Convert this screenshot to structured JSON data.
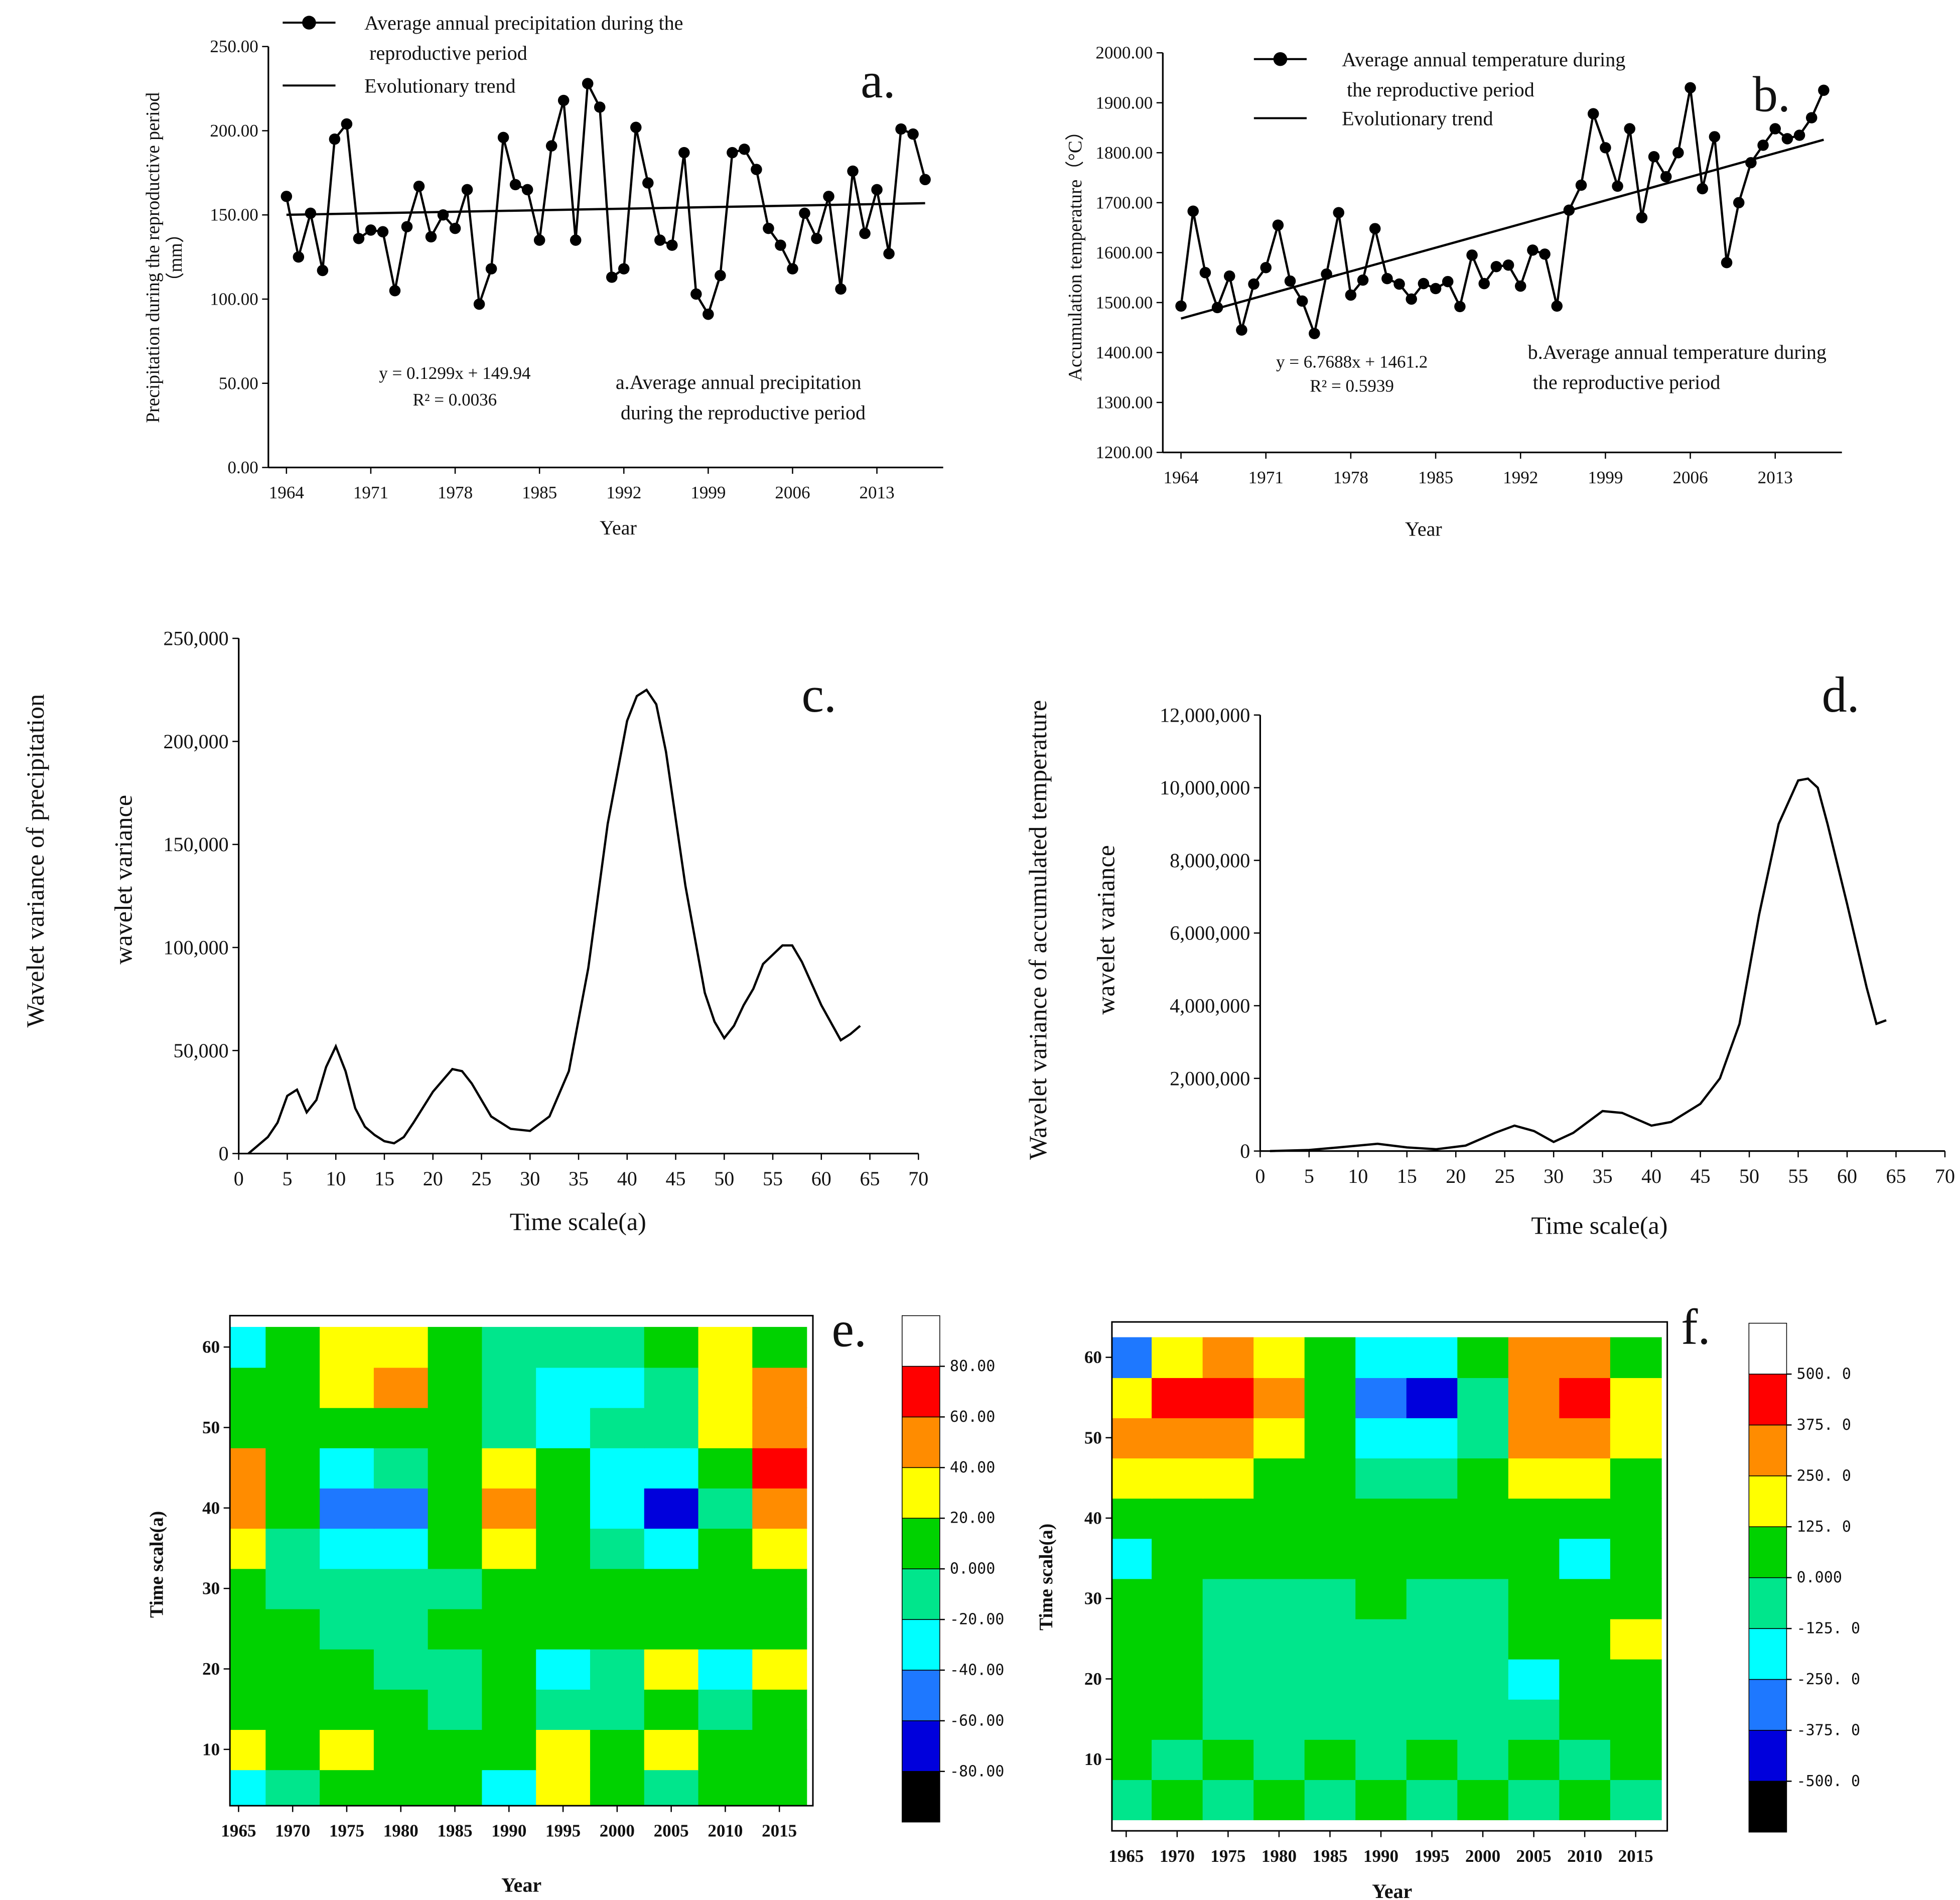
{
  "chart_data": [
    {
      "type": "line",
      "panel_label": "a.",
      "xlabel": "Year",
      "ylabel": [
        "Precipitation during the reproductive period",
        "（mm）"
      ],
      "annotations": [
        "y = 0.1299x + 149.94",
        "R² = 0.0036",
        "a.Average annual precipitation during the reproductive period"
      ],
      "x": [
        1964,
        1965,
        1966,
        1967,
        1968,
        1969,
        1970,
        1971,
        1972,
        1973,
        1974,
        1975,
        1976,
        1977,
        1978,
        1979,
        1980,
        1981,
        1982,
        1983,
        1984,
        1985,
        1986,
        1987,
        1988,
        1989,
        1990,
        1991,
        1992,
        1993,
        1994,
        1995,
        1996,
        1997,
        1998,
        1999,
        2000,
        2001,
        2002,
        2003,
        2004,
        2005,
        2006,
        2007,
        2008,
        2009,
        2010,
        2011,
        2012,
        2013,
        2014,
        2015,
        2016,
        2017
      ],
      "series": [
        {
          "name": "Average annual precipitation during the reproductive period",
          "color": "#000000",
          "marker": true,
          "values": [
            161,
            125,
            151,
            117,
            195,
            204,
            136,
            141,
            140,
            105,
            143,
            167,
            137,
            150,
            142,
            165,
            97,
            118,
            196,
            168,
            165,
            135,
            191,
            218,
            135,
            228,
            214,
            113,
            118,
            202,
            169,
            135,
            132,
            187,
            103,
            91,
            114,
            187,
            189,
            177,
            142,
            132,
            118,
            151,
            136,
            161,
            106,
            176,
            139,
            165,
            127,
            201,
            198,
            171
          ]
        },
        {
          "name": "Evolutionary trend",
          "color": "#000000",
          "marker": false,
          "x": [
            1964,
            2017
          ],
          "values": [
            150.07,
            156.95
          ]
        }
      ],
      "xlim": [
        1962.5,
        2018.5
      ],
      "xticks": [
        1964,
        1971,
        1978,
        1985,
        1992,
        1999,
        2006,
        2013
      ],
      "ylim": [
        0,
        250
      ],
      "yticks": [
        {
          "value": 0,
          "label": "0.00"
        },
        {
          "value": 50,
          "label": "50.00"
        },
        {
          "value": 100,
          "label": "100.00"
        },
        {
          "value": 150,
          "label": "150.00"
        },
        {
          "value": 200,
          "label": "200.00"
        },
        {
          "value": 250,
          "label": "250.00"
        }
      ]
    },
    {
      "type": "line",
      "panel_label": "b.",
      "xlabel": "Year",
      "ylabel": [
        "Accumulation temperature（°C）"
      ],
      "annotations": [
        "y = 6.7688x + 1461.2",
        "R² = 0.5939",
        "b.Average annual temperature during the reproductive period"
      ],
      "x": [
        1964,
        1965,
        1966,
        1967,
        1968,
        1969,
        1970,
        1971,
        1972,
        1973,
        1974,
        1975,
        1976,
        1977,
        1978,
        1979,
        1980,
        1981,
        1982,
        1983,
        1984,
        1985,
        1986,
        1987,
        1988,
        1989,
        1990,
        1991,
        1992,
        1993,
        1994,
        1995,
        1996,
        1997,
        1998,
        1999,
        2000,
        2001,
        2002,
        2003,
        2004,
        2005,
        2006,
        2007,
        2008,
        2009,
        2010,
        2011,
        2012,
        2013,
        2014,
        2015,
        2016,
        2017
      ],
      "series": [
        {
          "name": "Average annual temperature during the reproductive period",
          "color": "#000000",
          "marker": true,
          "values": [
            1493,
            1683,
            1560,
            1490,
            1553,
            1445,
            1537,
            1570,
            1655,
            1543,
            1503,
            1438,
            1557,
            1680,
            1515,
            1545,
            1648,
            1548,
            1537,
            1507,
            1538,
            1528,
            1542,
            1492,
            1595,
            1538,
            1572,
            1575,
            1533,
            1605,
            1597,
            1493,
            1685,
            1735,
            1878,
            1810,
            1733,
            1848,
            1670,
            1792,
            1752,
            1800,
            1930,
            1728,
            1832,
            1580,
            1700,
            1780,
            1815,
            1848,
            1828,
            1835,
            1870,
            1925
          ]
        },
        {
          "name": "Evolutionary trend",
          "color": "#000000",
          "marker": false,
          "x": [
            1964,
            2017
          ],
          "values": [
            1468,
            1826
          ]
        }
      ],
      "xlim": [
        1962.5,
        2018.5
      ],
      "xticks": [
        1964,
        1971,
        1978,
        1985,
        1992,
        1999,
        2006,
        2013
      ],
      "ylim": [
        1200,
        2000
      ],
      "yticks": [
        {
          "value": 1200,
          "label": "1200.00"
        },
        {
          "value": 1300,
          "label": "1300.00"
        },
        {
          "value": 1400,
          "label": "1400.00"
        },
        {
          "value": 1500,
          "label": "1500.00"
        },
        {
          "value": 1600,
          "label": "1600.00"
        },
        {
          "value": 1700,
          "label": "1700.00"
        },
        {
          "value": 1800,
          "label": "1800.00"
        },
        {
          "value": 1900,
          "label": "1900.00"
        },
        {
          "value": 2000,
          "label": "2000.00"
        }
      ]
    },
    {
      "type": "line",
      "panel_label": "c.",
      "xlabel": "Time scale(a)",
      "ylabel": [
        "Wavelet variance of precipitation",
        "wavelet variance"
      ],
      "x": [
        1,
        3,
        4,
        5,
        6,
        7,
        8,
        9,
        10,
        11,
        12,
        13,
        14,
        15,
        16,
        17,
        18,
        20,
        22,
        23,
        24,
        26,
        28,
        30,
        32,
        34,
        36,
        38,
        40,
        41,
        42,
        43,
        44,
        46,
        48,
        49,
        50,
        51,
        52,
        53,
        54,
        56,
        57,
        58,
        60,
        62,
        63,
        64
      ],
      "series": [
        {
          "color": "#000000",
          "marker": false,
          "values": [
            0,
            8000,
            15000,
            28000,
            31000,
            20000,
            26000,
            42000,
            52000,
            40000,
            22000,
            13000,
            9000,
            6000,
            5000,
            8000,
            15000,
            30000,
            41000,
            40000,
            34000,
            18000,
            12000,
            11000,
            18000,
            40000,
            90000,
            160000,
            210000,
            222000,
            225000,
            218000,
            195000,
            130000,
            78000,
            64000,
            56000,
            62000,
            72000,
            80000,
            92000,
            101000,
            101000,
            93000,
            72000,
            55000,
            58000,
            62000
          ]
        }
      ],
      "xlim": [
        0,
        70
      ],
      "xticks": [
        0,
        5,
        10,
        15,
        20,
        25,
        30,
        35,
        40,
        45,
        50,
        55,
        60,
        65,
        70
      ],
      "ylim": [
        0,
        250000
      ],
      "yticks": [
        0,
        {
          "value": 50000,
          "label": "50,000"
        },
        {
          "value": 100000,
          "label": "100,000"
        },
        {
          "value": 150000,
          "label": "150,000"
        },
        {
          "value": 200000,
          "label": "200,000"
        },
        {
          "value": 250000,
          "label": "250,000"
        }
      ]
    },
    {
      "type": "line",
      "panel_label": "d.",
      "xlabel": "Time scale(a)",
      "ylabel": [
        "Wavelet variance of accumulated temperature",
        "wavelet variance"
      ],
      "x": [
        1,
        5,
        8,
        12,
        15,
        18,
        21,
        24,
        26,
        28,
        30,
        32,
        35,
        37,
        40,
        42,
        45,
        47,
        49,
        51,
        53,
        55,
        56,
        57,
        58,
        60,
        62,
        63,
        64
      ],
      "series": [
        {
          "color": "#000000",
          "marker": false,
          "values": [
            0,
            30000,
            100000,
            200000,
            100000,
            50000,
            150000,
            500000,
            700000,
            550000,
            250000,
            500000,
            1100000,
            1050000,
            700000,
            800000,
            1300000,
            2000000,
            3500000,
            6500000,
            9000000,
            10200000,
            10250000,
            10000000,
            9000000,
            6800000,
            4500000,
            3500000,
            3600000
          ]
        }
      ],
      "xlim": [
        0,
        70
      ],
      "xticks": [
        0,
        5,
        10,
        15,
        20,
        25,
        30,
        35,
        40,
        45,
        50,
        55,
        60,
        65,
        70
      ],
      "ylim": [
        0,
        12000000
      ],
      "yticks": [
        0,
        {
          "value": 2000000,
          "label": "2,000,000"
        },
        {
          "value": 4000000,
          "label": "4,000,000"
        },
        {
          "value": 6000000,
          "label": "6,000,000"
        },
        {
          "value": 8000000,
          "label": "8,000,000"
        },
        {
          "value": 10000000,
          "label": "10,000,000"
        },
        {
          "value": 12000000,
          "label": "12,000,000"
        }
      ]
    },
    {
      "type": "contour",
      "panel_label": "e.",
      "xlabel": "Year",
      "ylabel": [
        "Time scale(a)"
      ],
      "x": [
        1965,
        1970,
        1975,
        1980,
        1985,
        1990,
        1995,
        2000,
        2005,
        2010,
        2015
      ],
      "y": [
        5,
        10,
        15,
        20,
        25,
        30,
        35,
        40,
        45,
        50,
        55,
        60
      ],
      "z": [
        [
          -25,
          -10,
          10,
          5,
          5,
          -25,
          25,
          5,
          -5,
          5,
          0
        ],
        [
          30,
          10,
          25,
          5,
          0,
          10,
          20,
          5,
          25,
          10,
          0
        ],
        [
          5,
          5,
          5,
          5,
          -5,
          10,
          -5,
          -5,
          10,
          -5,
          5
        ],
        [
          10,
          5,
          5,
          -5,
          -5,
          15,
          -25,
          -5,
          30,
          -25,
          25
        ],
        [
          5,
          5,
          -5,
          -5,
          5,
          10,
          0,
          5,
          10,
          5,
          5
        ],
        [
          5,
          -5,
          -5,
          -5,
          -5,
          15,
          0,
          5,
          0,
          5,
          5
        ],
        [
          20,
          -5,
          -30,
          -25,
          0,
          30,
          5,
          -15,
          -30,
          0,
          20
        ],
        [
          55,
          0,
          -45,
          -50,
          5,
          45,
          10,
          -30,
          -65,
          -10,
          45
        ],
        [
          50,
          0,
          -30,
          -20,
          10,
          30,
          0,
          -30,
          -35,
          10,
          60
        ],
        [
          10,
          5,
          10,
          10,
          5,
          -5,
          -25,
          -20,
          -10,
          20,
          50
        ],
        [
          5,
          10,
          30,
          45,
          10,
          -10,
          -25,
          -30,
          -10,
          30,
          45
        ],
        [
          -30,
          10,
          30,
          30,
          10,
          -10,
          -10,
          -10,
          10,
          30,
          10
        ]
      ],
      "colors": [
        "#000000",
        "#0000dc",
        "#1e78ff",
        "#00ffff",
        "#00e68c",
        "#00d200",
        "#ffff00",
        "#ff8c00",
        "#ff0000",
        "#ffffff"
      ],
      "colorbar_ticks": [
        {
          "value": -80,
          "label": "-80.00"
        },
        {
          "value": -60,
          "label": "-60.00"
        },
        {
          "value": -40,
          "label": "-40.00"
        },
        {
          "value": -20,
          "label": "-20.00"
        },
        {
          "value": 0,
          "label": "0.000"
        },
        {
          "value": 20,
          "label": "20.00"
        },
        {
          "value": 40,
          "label": "40.00"
        },
        {
          "value": 60,
          "label": "60.00"
        },
        {
          "value": 80,
          "label": "80.00"
        }
      ],
      "xlim": [
        1964.2,
        2018.1
      ],
      "xticks": [
        1965,
        1970,
        1975,
        1980,
        1985,
        1990,
        1995,
        2000,
        2005,
        2010,
        2015
      ],
      "ylim": [
        3,
        63.9
      ],
      "yticks": [
        10,
        20,
        30,
        40,
        50,
        60
      ]
    },
    {
      "type": "contour",
      "panel_label": "f.",
      "xlabel": "Year",
      "ylabel": [
        "Time scale(a)"
      ],
      "x": [
        1965,
        1970,
        1975,
        1980,
        1985,
        1990,
        1995,
        2000,
        2005,
        2010,
        2015
      ],
      "y": [
        5,
        10,
        15,
        20,
        25,
        30,
        35,
        40,
        45,
        50,
        55,
        60
      ],
      "z": [
        [
          -20,
          20,
          -20,
          20,
          -20,
          20,
          -20,
          20,
          -20,
          20,
          -20
        ],
        [
          20,
          -20,
          20,
          -20,
          20,
          -20,
          20,
          -20,
          20,
          -20,
          20
        ],
        [
          20,
          20,
          -20,
          -50,
          -50,
          -50,
          -50,
          -20,
          -20,
          20,
          20
        ],
        [
          20,
          20,
          -20,
          -20,
          -50,
          -50,
          -50,
          -20,
          -150,
          20,
          20
        ],
        [
          20,
          20,
          -20,
          -20,
          -50,
          -50,
          -50,
          -20,
          20,
          20,
          150
        ],
        [
          20,
          20,
          -20,
          -20,
          -20,
          20,
          -20,
          -20,
          20,
          20,
          50
        ],
        [
          -150,
          20,
          10,
          20,
          20,
          50,
          50,
          20,
          20,
          -150,
          50
        ],
        [
          50,
          50,
          50,
          50,
          50,
          50,
          50,
          50,
          50,
          20,
          50
        ],
        [
          150,
          200,
          150,
          100,
          50,
          -50,
          -100,
          50,
          150,
          200,
          100
        ],
        [
          250,
          350,
          350,
          200,
          0,
          -200,
          -250,
          -50,
          250,
          350,
          150
        ],
        [
          200,
          400,
          420,
          250,
          0,
          -300,
          -400,
          -100,
          300,
          420,
          150
        ],
        [
          -300,
          150,
          300,
          200,
          0,
          -150,
          -150,
          0,
          250,
          300,
          100
        ]
      ],
      "colors": [
        "#000000",
        "#0000dc",
        "#1e78ff",
        "#00ffff",
        "#00e68c",
        "#00d200",
        "#ffff00",
        "#ff8c00",
        "#ff0000",
        "#ffffff"
      ],
      "colorbar_ticks": [
        {
          "value": -500,
          "label": "-500. 0"
        },
        {
          "value": -375,
          "label": "-375. 0"
        },
        {
          "value": -250,
          "label": "-250. 0"
        },
        {
          "value": -125,
          "label": "-125. 0"
        },
        {
          "value": 0,
          "label": "0.000"
        },
        {
          "value": 125,
          "label": "125. 0"
        },
        {
          "value": 250,
          "label": "250. 0"
        },
        {
          "value": 375,
          "label": "375. 0"
        },
        {
          "value": 500,
          "label": "500. 0"
        }
      ],
      "xlim": [
        1963.6,
        2018.1
      ],
      "xticks": [
        1965,
        1970,
        1975,
        1980,
        1985,
        1990,
        1995,
        2000,
        2005,
        2010,
        2015
      ],
      "ylim": [
        1.1,
        64.4
      ],
      "yticks": [
        10,
        20,
        30,
        40,
        50,
        60
      ]
    }
  ]
}
